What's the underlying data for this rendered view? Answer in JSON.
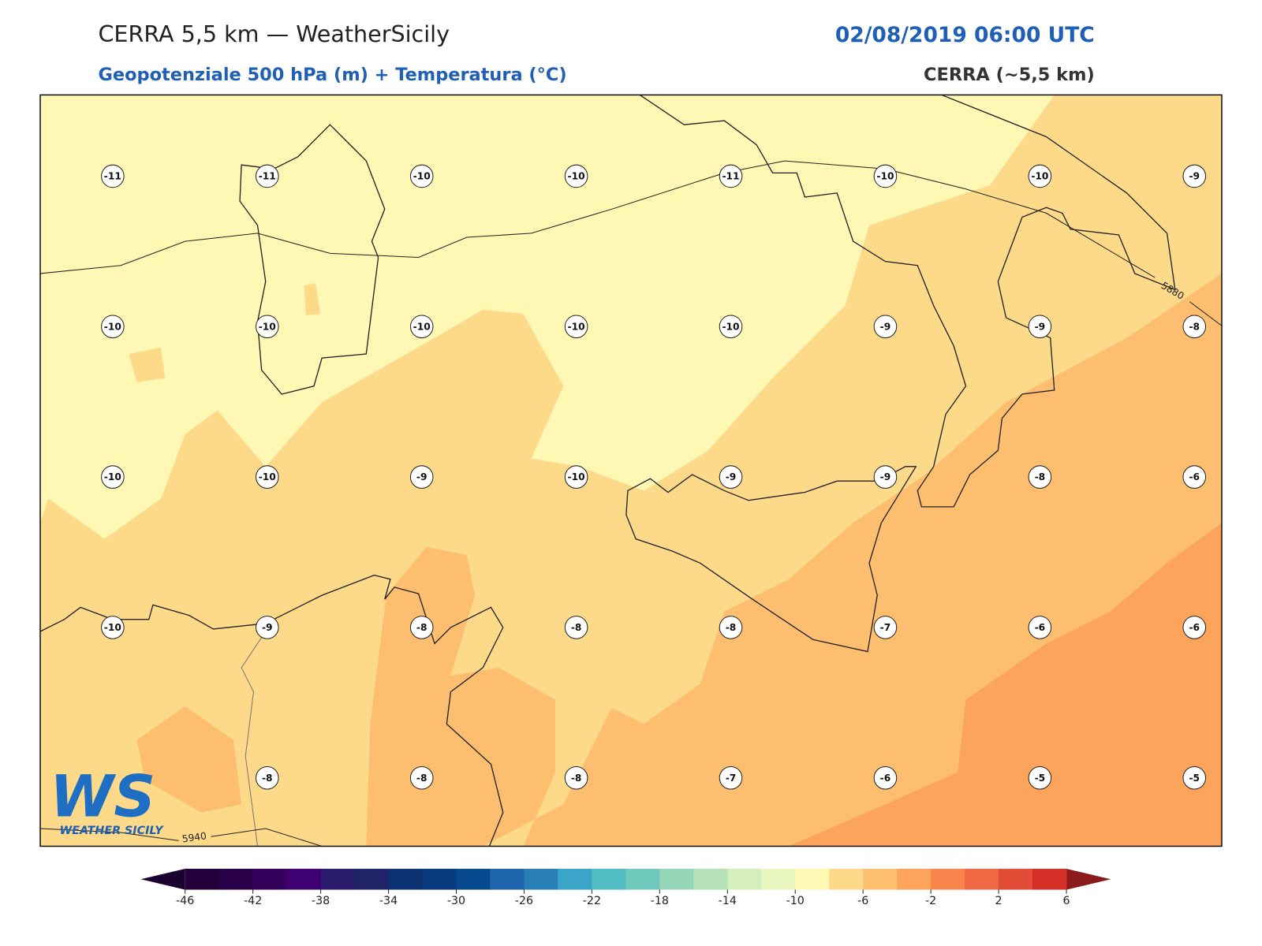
{
  "header": {
    "title": "CERRA 5,5 km — WeatherSicily",
    "datetime": "02/08/2019 06:00 UTC",
    "subtitle": "Geopotenziale 500 hPa (m) + Temperatura (°C)",
    "source": "CERRA (~5,5 km)"
  },
  "map": {
    "temperature_grid": [
      [
        -11,
        -11,
        -10,
        -10,
        -11,
        -10,
        -10,
        -9
      ],
      [
        -10,
        -10,
        -10,
        -10,
        -10,
        -9,
        -9,
        -8
      ],
      [
        -10,
        -10,
        -9,
        -10,
        -9,
        -9,
        -8,
        -6
      ],
      [
        -10,
        -9,
        -8,
        -8,
        -8,
        -7,
        -6,
        -6
      ],
      [
        null,
        -8,
        -8,
        -8,
        -7,
        -6,
        -5,
        -5
      ]
    ],
    "contour_labels": [
      "5880",
      "5940"
    ]
  },
  "colorbar": {
    "lim": [
      -46,
      6
    ],
    "ticks": [
      -46,
      -42,
      -38,
      -34,
      -30,
      -26,
      -22,
      -18,
      -14,
      -10,
      -6,
      -2,
      2,
      6
    ],
    "colors": [
      "#24003a",
      "#2a0049",
      "#33005a",
      "#3f0072",
      "#2a1a6b",
      "#1f2468",
      "#0d3173",
      "#083b7e",
      "#07498f",
      "#1f65ad",
      "#2b7fb8",
      "#3aa5c8",
      "#52bcc4",
      "#70c9bd",
      "#95d6b8",
      "#b6e1b8",
      "#d4efbc",
      "#e9f6c0",
      "#fff7b4",
      "#fdd98a",
      "#fdbf6f",
      "#fca35c",
      "#f8864c",
      "#ee6844",
      "#e34c37",
      "#d42f26"
    ]
  },
  "logo": {
    "text": "WS",
    "subtitle": "WEATHER SICILY"
  }
}
